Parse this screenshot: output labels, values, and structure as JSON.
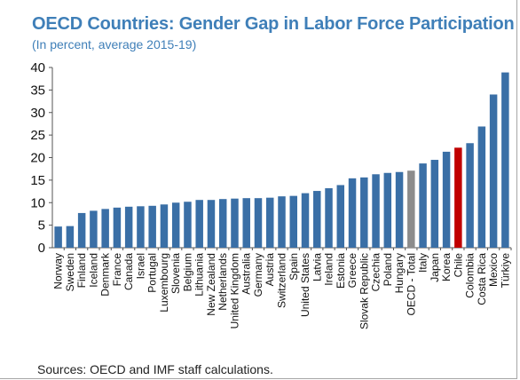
{
  "title": "OECD Countries: Gender Gap in Labor Force Participation",
  "subtitle": "(In percent, average 2015-19)",
  "source": "Sources: OECD and IMF staff calculations.",
  "colors": {
    "bar": "#3a6fa6",
    "highlight": "#c00000",
    "average": "#8c8c8c",
    "axis": "#555555",
    "title": "#3f7fb8"
  },
  "chart_data": {
    "type": "bar",
    "title": "OECD Countries: Gender Gap in Labor Force Participation",
    "subtitle": "(In percent, average 2015-19)",
    "xlabel": "",
    "ylabel": "",
    "ylim": [
      0,
      40
    ],
    "yticks": [
      0,
      5,
      10,
      15,
      20,
      25,
      30,
      35,
      40
    ],
    "grid": false,
    "highlight": {
      "Chile": "highlight",
      "OECD - Total": "average"
    },
    "categories": [
      "Norway",
      "Sweden",
      "Finland",
      "Iceland",
      "Denmark",
      "France",
      "Canada",
      "Israel",
      "Portugal",
      "Luxembourg",
      "Slovenia",
      "Belgium",
      "Lithuania",
      "New Zealand",
      "Netherlands",
      "United Kingdom",
      "Australia",
      "Germany",
      "Austria",
      "Switzerland",
      "Spain",
      "United States",
      "Latvia",
      "Ireland",
      "Estonia",
      "Greece",
      "Slovak Republic",
      "Czechia",
      "Poland",
      "Hungary",
      "OECD - Total",
      "Italy",
      "Japan",
      "Korea",
      "Chile",
      "Colombia",
      "Costa Rica",
      "Mexico",
      "Türkiye"
    ],
    "values": [
      4.7,
      4.8,
      7.7,
      8.2,
      8.6,
      8.9,
      9.1,
      9.2,
      9.3,
      9.6,
      10.0,
      10.2,
      10.6,
      10.6,
      10.8,
      10.9,
      11.0,
      11.0,
      11.1,
      11.4,
      11.5,
      12.1,
      12.6,
      13.2,
      13.9,
      15.4,
      15.6,
      16.3,
      16.6,
      16.8,
      17.1,
      18.7,
      19.5,
      21.3,
      22.2,
      23.2,
      26.9,
      34.0,
      38.9
    ]
  }
}
